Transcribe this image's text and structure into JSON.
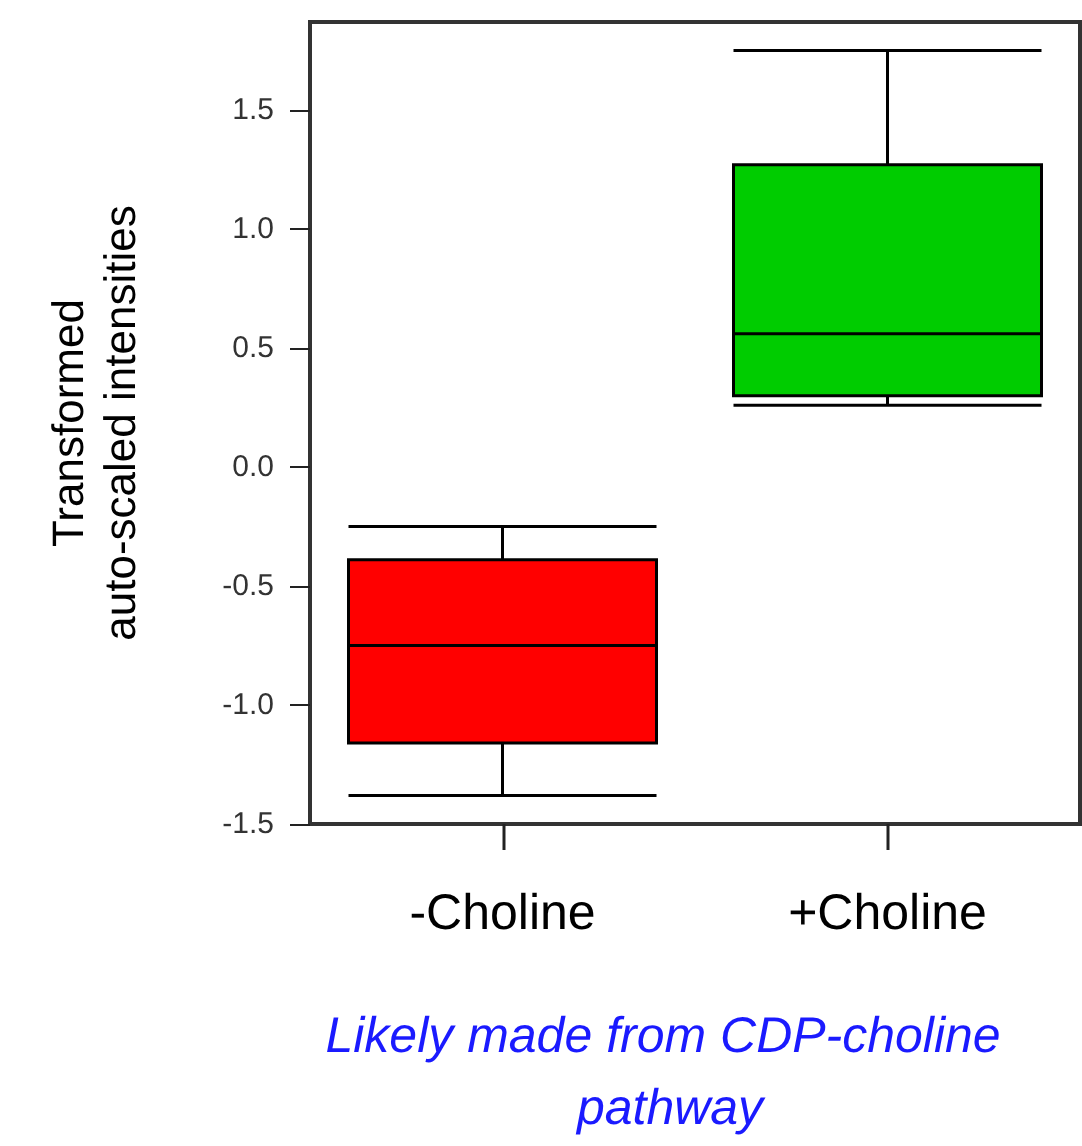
{
  "chart_data": {
    "type": "box",
    "categories": [
      "-Choline",
      "+Choline"
    ],
    "boxes": [
      {
        "low": -1.38,
        "q1": -1.16,
        "median": -0.75,
        "q3": -0.39,
        "high": -0.25
      },
      {
        "low": 0.26,
        "q1": 0.3,
        "median": 0.56,
        "q3": 1.27,
        "high": 1.75
      }
    ],
    "colors": [
      "#ff0000",
      "#00cc00"
    ],
    "ylabel": "Transformed\nauto-scaled intensities",
    "ylim": [
      -1.5,
      1.87
    ],
    "yticks": [
      -1.5,
      {
        "value": -1,
        "label": "-1.0"
      },
      -0.5,
      {
        "value": 0,
        "label": "0.0"
      },
      0.5,
      {
        "value": 1,
        "label": "1.0"
      },
      1.5
    ],
    "annotations": [
      "Likely made from CDP-choline pathway"
    ]
  }
}
